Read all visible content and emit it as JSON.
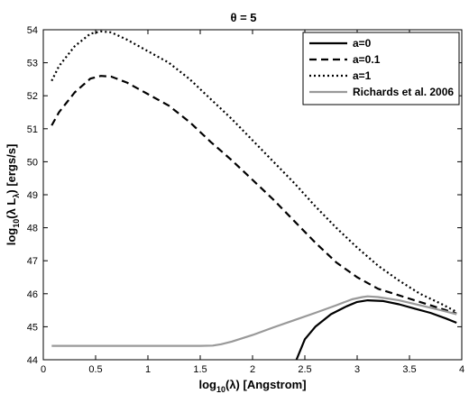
{
  "chart_data": {
    "type": "line",
    "title": "θ = 5",
    "xlabel": "log10(λ) [Angstrom]",
    "ylabel": "log10(λ Lλ) [ergs/s]",
    "xlim": [
      0,
      4
    ],
    "ylim": [
      44,
      54
    ],
    "xticks": [
      "0",
      "0.5",
      "1",
      "1.5",
      "2",
      "2.5",
      "3",
      "3.5",
      "4"
    ],
    "yticks": [
      "44",
      "45",
      "46",
      "47",
      "48",
      "49",
      "50",
      "51",
      "52",
      "53",
      "54"
    ],
    "grid": false,
    "legend_position": "top-right",
    "series": [
      {
        "name": "a=0",
        "color": "#000000",
        "style": "solid",
        "x": [
          2.42,
          2.5,
          2.6,
          2.75,
          2.9,
          3.0,
          3.1,
          3.25,
          3.4,
          3.55,
          3.7,
          3.85,
          3.95
        ],
        "y": [
          44.0,
          44.62,
          45.0,
          45.38,
          45.62,
          45.75,
          45.8,
          45.78,
          45.68,
          45.55,
          45.42,
          45.25,
          45.12
        ]
      },
      {
        "name": "a=0.1",
        "color": "#000000",
        "style": "dashed",
        "x": [
          0.08,
          0.15,
          0.3,
          0.45,
          0.55,
          0.65,
          0.8,
          1.0,
          1.2,
          1.4,
          1.6,
          1.8,
          2.0,
          2.2,
          2.4,
          2.6,
          2.8,
          3.0,
          3.2,
          3.4,
          3.6,
          3.8,
          3.95
        ],
        "y": [
          51.1,
          51.5,
          52.1,
          52.52,
          52.6,
          52.58,
          52.4,
          52.05,
          51.7,
          51.2,
          50.6,
          50.05,
          49.45,
          48.85,
          48.2,
          47.55,
          46.95,
          46.5,
          46.15,
          45.95,
          45.75,
          45.55,
          45.4
        ]
      },
      {
        "name": "a=1",
        "color": "#000000",
        "style": "dotted",
        "x": [
          0.08,
          0.15,
          0.3,
          0.45,
          0.55,
          0.65,
          0.8,
          1.0,
          1.2,
          1.4,
          1.6,
          1.8,
          2.0,
          2.2,
          2.4,
          2.6,
          2.8,
          3.0,
          3.2,
          3.4,
          3.6,
          3.8,
          3.95
        ],
        "y": [
          52.45,
          52.9,
          53.5,
          53.88,
          53.95,
          53.92,
          53.7,
          53.35,
          53.0,
          52.5,
          51.9,
          51.3,
          50.65,
          50.0,
          49.35,
          48.65,
          48.0,
          47.4,
          46.85,
          46.4,
          46.0,
          45.7,
          45.45
        ]
      },
      {
        "name": "Richards et al. 2006",
        "color": "#999999",
        "style": "solid",
        "x": [
          0.08,
          0.5,
          1.0,
          1.5,
          1.62,
          1.7,
          1.8,
          2.0,
          2.2,
          2.4,
          2.6,
          2.8,
          2.95,
          3.05,
          3.1,
          3.2,
          3.4,
          3.6,
          3.8,
          3.95
        ],
        "y": [
          44.42,
          44.42,
          44.42,
          44.42,
          44.43,
          44.47,
          44.55,
          44.75,
          44.98,
          45.2,
          45.42,
          45.65,
          45.83,
          45.9,
          45.92,
          45.9,
          45.8,
          45.65,
          45.5,
          45.38
        ]
      }
    ]
  }
}
